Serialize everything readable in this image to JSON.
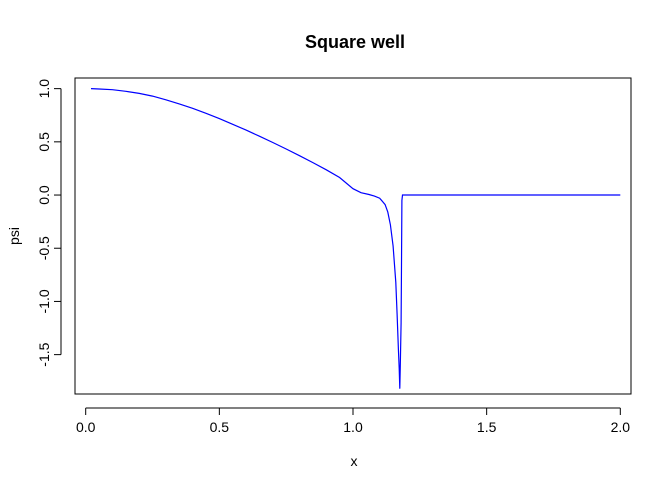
{
  "chart_data": {
    "type": "line",
    "title": "Square well",
    "xlabel": "x",
    "ylabel": "psi",
    "xlim": [
      -0.04,
      2.04
    ],
    "ylim": [
      -1.87,
      1.1
    ],
    "xticks": [
      0.0,
      0.5,
      1.0,
      1.5,
      2.0
    ],
    "xtick_labels": [
      "0.0",
      "0.5",
      "1.0",
      "1.5",
      "2.0"
    ],
    "yticks": [
      -1.5,
      -1.0,
      -0.5,
      0.0,
      0.5,
      1.0
    ],
    "ytick_labels": [
      "-1.5",
      "-1.0",
      "-0.5",
      "0.0",
      "0.5",
      "1.0"
    ],
    "grid": false,
    "line_color": "#0000ff",
    "series": [
      {
        "x": [
          0.02,
          0.05,
          0.1,
          0.15,
          0.2,
          0.25,
          0.3,
          0.35,
          0.4,
          0.45,
          0.5,
          0.55,
          0.6,
          0.65,
          0.7,
          0.75,
          0.8,
          0.85,
          0.9,
          0.95,
          1.0,
          1.03,
          1.06,
          1.08,
          1.1,
          1.12,
          1.13,
          1.14,
          1.15,
          1.16,
          1.165,
          1.17,
          1.173,
          1.175,
          1.177,
          1.18,
          1.181,
          1.182,
          1.183,
          1.185,
          1.19,
          1.3,
          1.5,
          1.7,
          1.9,
          2.0
        ],
        "y": [
          1.0,
          0.997,
          0.99,
          0.975,
          0.955,
          0.93,
          0.895,
          0.857,
          0.815,
          0.768,
          0.718,
          0.665,
          0.61,
          0.553,
          0.494,
          0.433,
          0.37,
          0.305,
          0.237,
          0.165,
          0.06,
          0.022,
          0.005,
          -0.01,
          -0.03,
          -0.09,
          -0.16,
          -0.28,
          -0.48,
          -0.82,
          -1.12,
          -1.45,
          -1.63,
          -1.82,
          -1.6,
          -1.2,
          -0.8,
          -0.35,
          -0.05,
          0.0,
          0.0,
          0.0,
          0.0,
          0.0,
          0.0,
          0.0
        ]
      }
    ]
  }
}
